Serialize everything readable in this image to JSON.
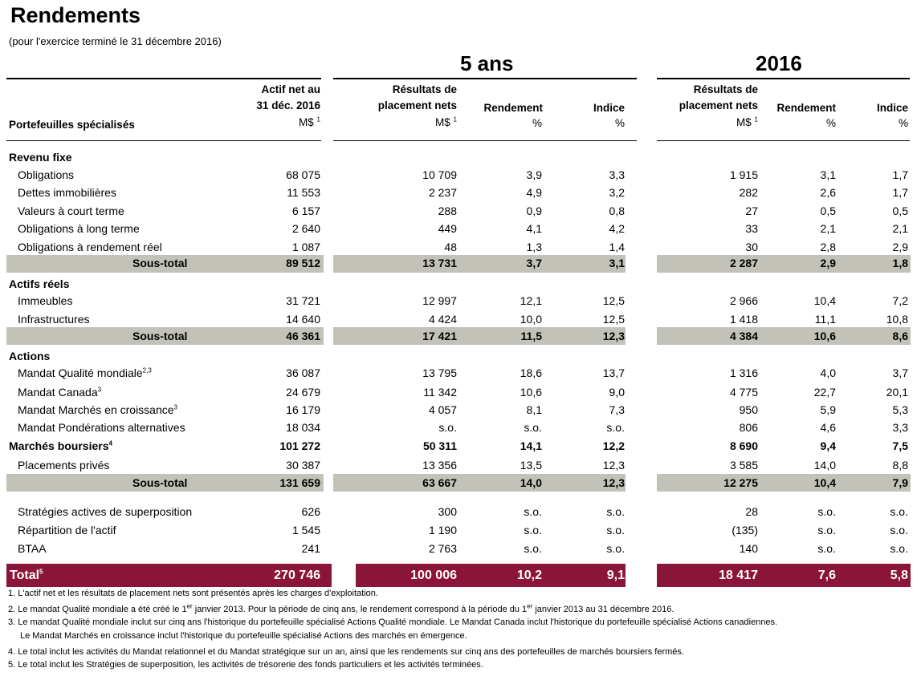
{
  "title": "Rendements",
  "subtitle": "(pour l'exercice terminé le 31 décembre 2016)",
  "period_5y": "5 ans",
  "period_2016": "2016",
  "headers": {
    "portfolios": "Portefeuilles spécialisés",
    "net_assets_line1": "Actif net au",
    "net_assets_line2": "31 déc. 2016",
    "results_line1": "Résultats de",
    "results_line2": "placement nets",
    "return": "Rendement",
    "index": "Indice",
    "unit_money": "M$",
    "unit_note": "1",
    "unit_pct": "%"
  },
  "sections": {
    "fixed_income": {
      "title": "Revenu fixe",
      "rows": [
        {
          "label": "Obligations",
          "note": "",
          "assets": "68 075",
          "r5": "10 709",
          "ret5": "3,9",
          "idx5": "3,3",
          "r16": "1 915",
          "ret16": "3,1",
          "idx16": "1,7"
        },
        {
          "label": "Dettes immobilières",
          "note": "",
          "assets": "11 553",
          "r5": "2 237",
          "ret5": "4,9",
          "idx5": "3,2",
          "r16": "282",
          "ret16": "2,6",
          "idx16": "1,7"
        },
        {
          "label": "Valeurs à court terme",
          "note": "",
          "assets": "6 157",
          "r5": "288",
          "ret5": "0,9",
          "idx5": "0,8",
          "r16": "27",
          "ret16": "0,5",
          "idx16": "0,5"
        },
        {
          "label": "Obligations à long terme",
          "note": "",
          "assets": "2 640",
          "r5": "449",
          "ret5": "4,1",
          "idx5": "4,2",
          "r16": "33",
          "ret16": "2,1",
          "idx16": "2,1"
        },
        {
          "label": "Obligations à rendement réel",
          "note": "",
          "assets": "1 087",
          "r5": "48",
          "ret5": "1,3",
          "idx5": "1,4",
          "r16": "30",
          "ret16": "2,8",
          "idx16": "2,9"
        }
      ],
      "subtotal": {
        "label": "Sous-total",
        "assets": "89 512",
        "r5": "13 731",
        "ret5": "3,7",
        "idx5": "3,1",
        "r16": "2 287",
        "ret16": "2,9",
        "idx16": "1,8"
      }
    },
    "real_assets": {
      "title": "Actifs réels",
      "rows": [
        {
          "label": "Immeubles",
          "note": "",
          "assets": "31 721",
          "r5": "12 997",
          "ret5": "12,1",
          "idx5": "12,5",
          "r16": "2 966",
          "ret16": "10,4",
          "idx16": "7,2"
        },
        {
          "label": "Infrastructures",
          "note": "",
          "assets": "14 640",
          "r5": "4 424",
          "ret5": "10,0",
          "idx5": "12,5",
          "r16": "1 418",
          "ret16": "11,1",
          "idx16": "10,8"
        }
      ],
      "subtotal": {
        "label": "Sous-total",
        "assets": "46 361",
        "r5": "17 421",
        "ret5": "11,5",
        "idx5": "12,3",
        "r16": "4 384",
        "ret16": "10,6",
        "idx16": "8,6"
      }
    },
    "equities": {
      "title": "Actions",
      "rows": [
        {
          "label": "Mandat Qualité mondiale",
          "note": "2,3",
          "assets": "36 087",
          "r5": "13 795",
          "ret5": "18,6",
          "idx5": "13,7",
          "r16": "1 316",
          "ret16": "4,0",
          "idx16": "3,7"
        },
        {
          "label": "Mandat Canada",
          "note": "3",
          "assets": "24 679",
          "r5": "11 342",
          "ret5": "10,6",
          "idx5": "9,0",
          "r16": "4 775",
          "ret16": "22,7",
          "idx16": "20,1"
        },
        {
          "label": "Mandat Marchés en croissance",
          "note": "3",
          "assets": "16 179",
          "r5": "4 057",
          "ret5": "8,1",
          "idx5": "7,3",
          "r16": "950",
          "ret16": "5,9",
          "idx16": "5,3"
        },
        {
          "label": "Mandat Pondérations alternatives",
          "note": "",
          "assets": "18 034",
          "r5": "s.o.",
          "ret5": "s.o.",
          "idx5": "s.o.",
          "r16": "806",
          "ret16": "4,6",
          "idx16": "3,3"
        }
      ],
      "markets": {
        "label": "Marchés boursiers",
        "note": "4",
        "assets": "101 272",
        "r5": "50 311",
        "ret5": "14,1",
        "idx5": "12,2",
        "r16": "8 690",
        "ret16": "9,4",
        "idx16": "7,5"
      },
      "private": {
        "label": "Placements privés",
        "note": "",
        "assets": "30 387",
        "r5": "13 356",
        "ret5": "13,5",
        "idx5": "12,3",
        "r16": "3 585",
        "ret16": "14,0",
        "idx16": "8,8"
      },
      "subtotal": {
        "label": "Sous-total",
        "assets": "131 659",
        "r5": "63 667",
        "ret5": "14,0",
        "idx5": "12,3",
        "r16": "12 275",
        "ret16": "10,4",
        "idx16": "7,9"
      }
    },
    "other": {
      "rows": [
        {
          "label": "Stratégies actives de superposition",
          "note": "",
          "assets": "626",
          "r5": "300",
          "ret5": "s.o.",
          "idx5": "s.o.",
          "r16": "28",
          "ret16": "s.o.",
          "idx16": "s.o."
        },
        {
          "label": "Répartition de l'actif",
          "note": "",
          "assets": "1 545",
          "r5": "1 190",
          "ret5": "s.o.",
          "idx5": "s.o.",
          "r16": "(135)",
          "ret16": "s.o.",
          "idx16": "s.o."
        },
        {
          "label": "BTAA",
          "note": "",
          "assets": "241",
          "r5": "2 763",
          "ret5": "s.o.",
          "idx5": "s.o.",
          "r16": "140",
          "ret16": "s.o.",
          "idx16": "s.o."
        }
      ]
    }
  },
  "total": {
    "label": "Total",
    "note": "5",
    "assets": "270 746",
    "r5": "100 006",
    "ret5": "10,2",
    "idx5": "9,1",
    "r16": "18 417",
    "ret16": "7,6",
    "idx16": "5,8"
  },
  "footnotes": {
    "f1": "1. L'actif net et les résultats de placement nets sont présentés après les charges d'exploitation.",
    "f2a": "2. Le mandat Qualité mondiale a été créé le 1",
    "f2sup": "er",
    "f2b": " janvier 2013. Pour la période de cinq ans, le rendement correspond à la période du 1",
    "f2c": " janvier 2013 au 31 décembre 2016.",
    "f3a": "3. Le mandat Qualité mondiale inclut sur cinq ans l'historique du portefeuille spécialisé Actions Qualité mondiale. Le Mandat Canada inclut l'historique du portefeuille spécialisé Actions canadiennes.",
    "f3b": "Le Mandat Marchés en croissance inclut l'historique du portefeuille spécialisé Actions des marchés en émergence.",
    "f4": "4. Le total inclut les activités du Mandat relationnel et du Mandat stratégique sur un an, ainsi que les rendements sur cinq ans des portefeuilles de marchés boursiers fermés.",
    "f5": "5. Le total inclut les Stratégies de superposition, les activités de trésorerie des fonds particuliers et les activités terminées."
  }
}
